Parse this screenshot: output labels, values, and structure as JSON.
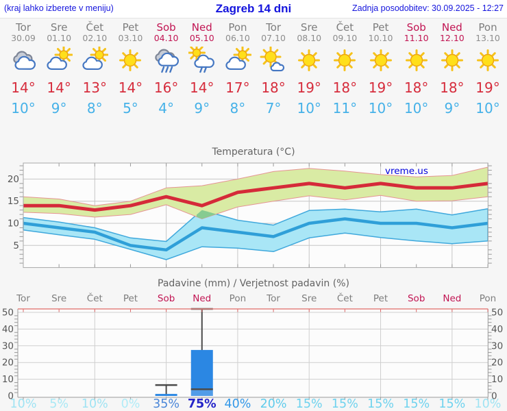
{
  "header": {
    "left_note": "(kraj lahko izberete v meniju)",
    "title": "Zagreb 14 dni",
    "updated": "Zadnja posodobitev: 30.09.2025 - 12:27"
  },
  "watermark": "vreme.us",
  "days": [
    {
      "name": "Tor",
      "date": "30.09",
      "weekend": false,
      "icon": "cloudy",
      "tmax": "14°",
      "tmin": "10°",
      "pop": "10%"
    },
    {
      "name": "Sre",
      "date": "01.10",
      "weekend": false,
      "icon": "partly",
      "tmax": "14°",
      "tmin": "9°",
      "pop": "5%"
    },
    {
      "name": "Čet",
      "date": "02.10",
      "weekend": false,
      "icon": "partly",
      "tmax": "13°",
      "tmin": "8°",
      "pop": "10%"
    },
    {
      "name": "Pet",
      "date": "03.10",
      "weekend": false,
      "icon": "sunny",
      "tmax": "14°",
      "tmin": "5°",
      "pop": "0%"
    },
    {
      "name": "Sob",
      "date": "04.10",
      "weekend": true,
      "icon": "rain",
      "tmax": "16°",
      "tmin": "4°",
      "pop": "35%"
    },
    {
      "name": "Ned",
      "date": "05.10",
      "weekend": true,
      "icon": "sun-rain",
      "tmax": "14°",
      "tmin": "9°",
      "pop": "75%"
    },
    {
      "name": "Pon",
      "date": "06.10",
      "weekend": false,
      "icon": "partly",
      "tmax": "17°",
      "tmin": "8°",
      "pop": "40%"
    },
    {
      "name": "Tor",
      "date": "07.10",
      "weekend": false,
      "icon": "mostly-sunny",
      "tmax": "18°",
      "tmin": "7°",
      "pop": "20%"
    },
    {
      "name": "Sre",
      "date": "08.10",
      "weekend": false,
      "icon": "sunny",
      "tmax": "19°",
      "tmin": "10°",
      "pop": "15%"
    },
    {
      "name": "Čet",
      "date": "09.10",
      "weekend": false,
      "icon": "sunny",
      "tmax": "18°",
      "tmin": "11°",
      "pop": "15%"
    },
    {
      "name": "Pet",
      "date": "10.10",
      "weekend": false,
      "icon": "sunny",
      "tmax": "19°",
      "tmin": "10°",
      "pop": "15%"
    },
    {
      "name": "Sob",
      "date": "11.10",
      "weekend": true,
      "icon": "sunny",
      "tmax": "18°",
      "tmin": "10°",
      "pop": "15%"
    },
    {
      "name": "Ned",
      "date": "12.10",
      "weekend": true,
      "icon": "sunny",
      "tmax": "18°",
      "tmin": "9°",
      "pop": "15%"
    },
    {
      "name": "Pon",
      "date": "13.10",
      "weekend": false,
      "icon": "sunny",
      "tmax": "19°",
      "tmin": "10°",
      "pop": "10%"
    }
  ],
  "chart_data": [
    {
      "type": "line",
      "title": "Temperatura (°C)",
      "categories": [
        "30.09",
        "01.10",
        "02.10",
        "03.10",
        "04.10",
        "05.10",
        "06.10",
        "07.10",
        "08.10",
        "09.10",
        "10.10",
        "11.10",
        "12.10",
        "13.10"
      ],
      "ylim": [
        0,
        23.6
      ],
      "yticks": [
        5,
        10,
        15,
        20
      ],
      "grid": true,
      "series": [
        {
          "name": "max_temp",
          "color": "#d52a39",
          "values": [
            14,
            14,
            13,
            14,
            16,
            14,
            17,
            18,
            19,
            18,
            19,
            18,
            18,
            19
          ]
        },
        {
          "name": "max_band_hi",
          "color": "#d9eba4",
          "values": [
            16,
            15.5,
            14,
            15,
            18,
            18.5,
            20,
            21.7,
            22.4,
            21.8,
            21,
            20.5,
            20.8,
            22.7
          ]
        },
        {
          "name": "max_band_lo",
          "color": "#d9eba4",
          "values": [
            12.5,
            12.2,
            11.4,
            12,
            14.2,
            11,
            13.7,
            15,
            16.2,
            15.3,
            16.3,
            15,
            15.1,
            16
          ]
        },
        {
          "name": "min_temp",
          "color": "#2f9fd8",
          "values": [
            10,
            9,
            8,
            5,
            4,
            9,
            8,
            7,
            10,
            11,
            10,
            10,
            9,
            10
          ]
        },
        {
          "name": "min_band_hi",
          "color": "#a9e6f6",
          "values": [
            11.3,
            10.3,
            9,
            6.7,
            5.9,
            13,
            10.7,
            9.6,
            12.9,
            13.2,
            12.6,
            13.2,
            11.9,
            13.3
          ]
        },
        {
          "name": "min_band_lo",
          "color": "#a9e6f6",
          "values": [
            8.5,
            7.4,
            6.4,
            4.1,
            1.8,
            4.7,
            4.4,
            3.6,
            6.7,
            7.8,
            6.8,
            6,
            5.4,
            6
          ]
        }
      ]
    },
    {
      "type": "bar",
      "title": "Padavine (mm) / Verjetnost padavin (%)",
      "categories": [
        "Tor",
        "Sre",
        "Čet",
        "Pet",
        "Sob",
        "Ned",
        "Pon",
        "Tor",
        "Sre",
        "Čet",
        "Pet",
        "Sob",
        "Ned",
        "Pon"
      ],
      "ylim": [
        0,
        52
      ],
      "yticks": [
        0,
        10,
        20,
        30,
        40,
        50
      ],
      "bars": [
        0,
        0,
        0,
        0,
        1.2,
        27.5,
        0,
        0,
        0,
        0,
        0,
        0,
        0,
        0
      ],
      "whisker_max": [
        0,
        0,
        0,
        0,
        6.5,
        52.5,
        0,
        0,
        0,
        0,
        0,
        0,
        0,
        0
      ],
      "whisker_min": [
        0,
        0,
        0,
        0,
        0,
        4,
        0,
        0,
        0,
        0,
        0,
        0,
        0,
        0
      ],
      "probability_pct": [
        10,
        5,
        10,
        0,
        35,
        75,
        40,
        20,
        15,
        15,
        15,
        15,
        15,
        10
      ]
    }
  ],
  "colors": {
    "tmax_text": "#d62c3c",
    "tmin_text": "#45b1e8",
    "weekend": "#c11452",
    "bar_fill": "#2b87e3",
    "band_overlap": "#86cb90",
    "pop_scale": {
      "0": "#b0ebf7",
      "5": "#a8e8f5",
      "10": "#9fe3f3",
      "15": "#6ed2ee",
      "20": "#5ecbeb",
      "35": "#4a86d8",
      "40": "#3398e8",
      "75": "#2424c8"
    }
  }
}
